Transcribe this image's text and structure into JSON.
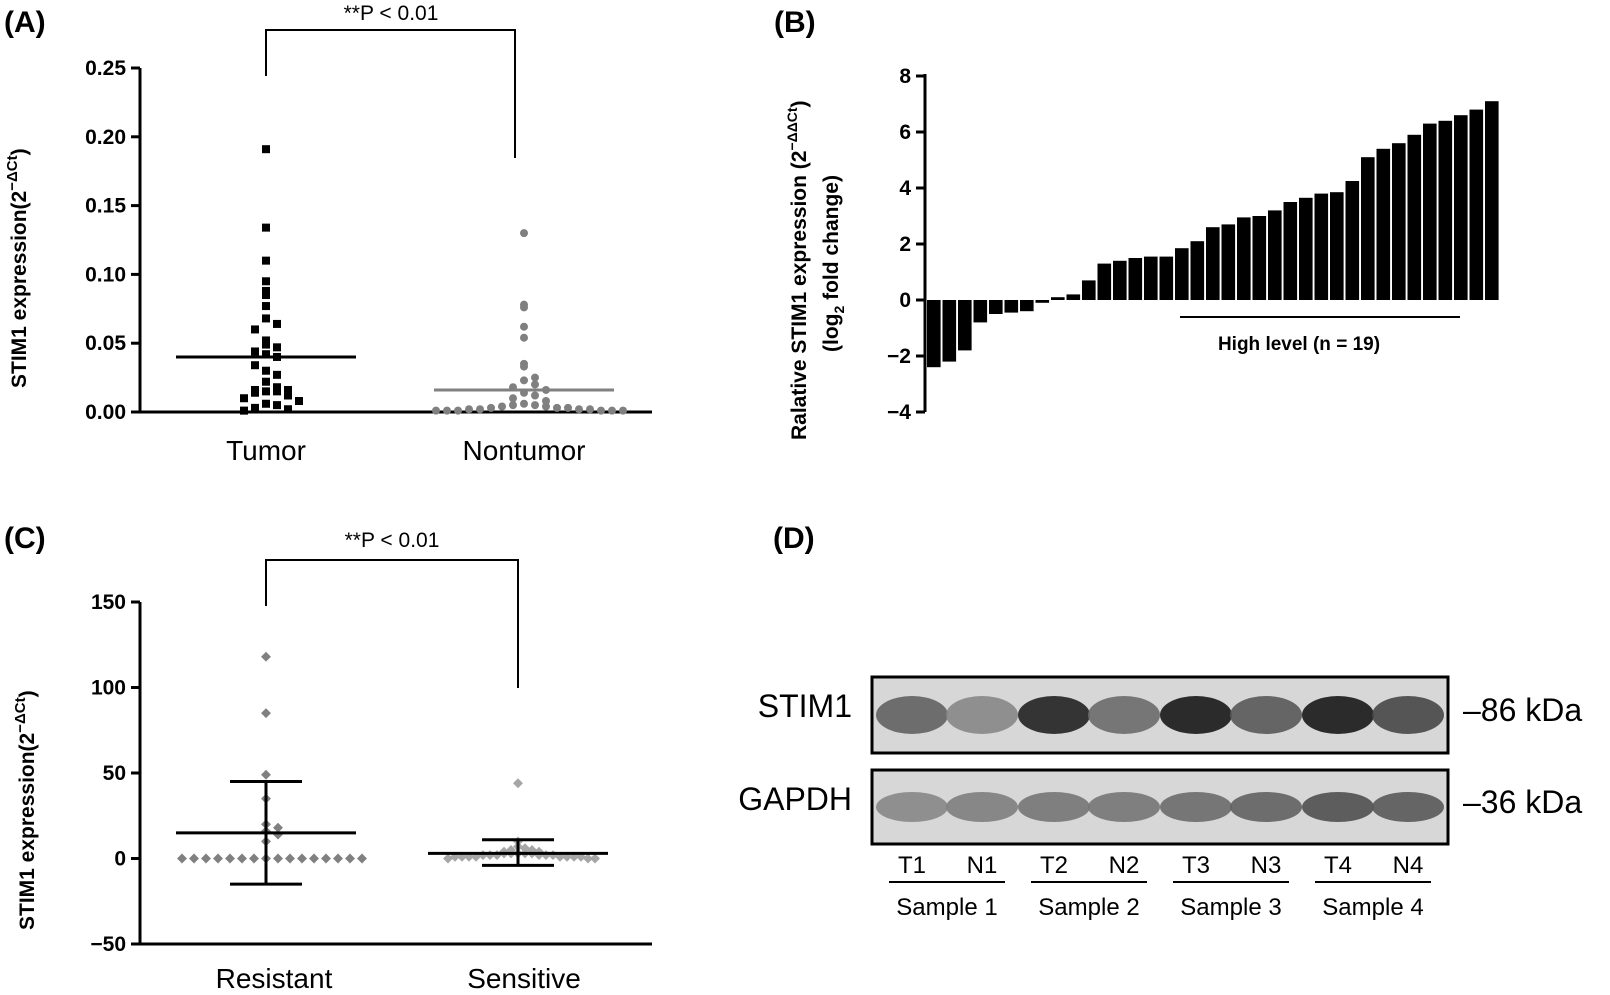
{
  "colors": {
    "black": "#000000",
    "gray": "#808080",
    "light_gray": "#a6a6a6",
    "blot_bg": "#d7d7d7"
  },
  "chart_data": [
    {
      "panel": "(A)",
      "type": "scatter",
      "ylabel_main": "STIM1 expression(2",
      "ylabel_sup": "−ΔCt",
      "ylabel_close": ")",
      "ylim": [
        0,
        0.25
      ],
      "yticks": [
        "0.00",
        "0.05",
        "0.10",
        "0.15",
        "0.20",
        "0.25"
      ],
      "categories": [
        "Tumor",
        "Nontumor"
      ],
      "significance": "**P < 0.01",
      "series": [
        {
          "name": "Tumor",
          "marker": "square",
          "mean": 0.04,
          "values": [
            0.191,
            0.134,
            0.11,
            0.095,
            0.088,
            0.085,
            0.077,
            0.068,
            0.064,
            0.06,
            0.052,
            0.049,
            0.047,
            0.044,
            0.042,
            0.04,
            0.034,
            0.03,
            0.027,
            0.022,
            0.018,
            0.016,
            0.016,
            0.015,
            0.015,
            0.014,
            0.012,
            0.01,
            0.008,
            0.006,
            0.005,
            0.003,
            0.002,
            0.001
          ]
        },
        {
          "name": "Nontumor",
          "marker": "circle",
          "mean": 0.016,
          "values": [
            0.13,
            0.078,
            0.076,
            0.062,
            0.054,
            0.035,
            0.033,
            0.025,
            0.023,
            0.02,
            0.018,
            0.016,
            0.014,
            0.012,
            0.01,
            0.008,
            0.006,
            0.005,
            0.005,
            0.004,
            0.004,
            0.003,
            0.003,
            0.003,
            0.002,
            0.002,
            0.002,
            0.002,
            0.001,
            0.001,
            0.001,
            0.001,
            0.001,
            0.001
          ]
        }
      ]
    },
    {
      "panel": "(B)",
      "type": "bar",
      "ylabel_line1_main": "Ralative STIM1 expression (2",
      "ylabel_line1_sup": "−ΔΔCt",
      "ylabel_line1_close": ")",
      "ylabel_line2_main": "(log",
      "ylabel_line2_sub": "2",
      "ylabel_line2_rest": " fold change)",
      "ylim": [
        -4,
        8
      ],
      "yticks": [
        "−4",
        "−2",
        "0",
        "2",
        "4",
        "6",
        "8"
      ],
      "values": [
        -2.4,
        -2.2,
        -1.8,
        -0.8,
        -0.5,
        -0.45,
        -0.4,
        -0.1,
        0.1,
        0.2,
        0.7,
        1.3,
        1.4,
        1.5,
        1.55,
        1.55,
        1.85,
        2.1,
        2.6,
        2.7,
        2.95,
        3.0,
        3.2,
        3.5,
        3.65,
        3.8,
        3.85,
        4.25,
        5.1,
        5.4,
        5.6,
        5.9,
        6.3,
        6.4,
        6.6,
        6.8,
        7.1
      ],
      "annotation": "High level (n = 19)"
    },
    {
      "panel": "(C)",
      "type": "scatter",
      "ylabel_main": "STIM1 expression(2",
      "ylabel_sup": "−ΔCt",
      "ylabel_close": ")",
      "ylim": [
        -50,
        150
      ],
      "yticks": [
        "−50",
        "0",
        "50",
        "100",
        "150"
      ],
      "categories": [
        "Resistant",
        "Sensitive"
      ],
      "significance": "**P < 0.01",
      "series": [
        {
          "name": "Resistant",
          "mean": 15,
          "error_upper": 45,
          "error_lower": -15,
          "values": [
            118,
            85,
            49,
            35,
            20,
            18,
            16,
            14,
            10,
            0,
            0,
            0,
            0,
            0,
            0,
            0,
            0,
            0,
            0,
            0,
            0,
            0,
            0,
            0,
            0
          ]
        },
        {
          "name": "Sensitive",
          "mean": 3,
          "error_upper": 11,
          "error_lower": -4,
          "values": [
            44,
            10,
            7,
            6,
            5,
            5,
            4,
            4,
            3,
            3,
            3,
            3,
            3,
            2,
            2,
            2,
            2,
            2,
            2,
            1,
            1,
            1,
            1,
            1,
            1,
            1,
            1,
            0,
            0,
            0
          ]
        }
      ]
    }
  ],
  "blot": {
    "panel": "(D)",
    "rows": [
      {
        "label": "STIM1",
        "size": "–86 kDa",
        "intensities": [
          0.55,
          0.35,
          0.9,
          0.5,
          0.95,
          0.6,
          0.95,
          0.7
        ]
      },
      {
        "label": "GAPDH",
        "size": "–36 kDa",
        "intensities": [
          0.35,
          0.4,
          0.45,
          0.45,
          0.5,
          0.55,
          0.65,
          0.6
        ]
      }
    ],
    "lanes": [
      "T1",
      "N1",
      "T2",
      "N2",
      "T3",
      "N3",
      "T4",
      "N4"
    ],
    "samples": [
      "Sample 1",
      "Sample 2",
      "Sample 3",
      "Sample 4"
    ]
  }
}
